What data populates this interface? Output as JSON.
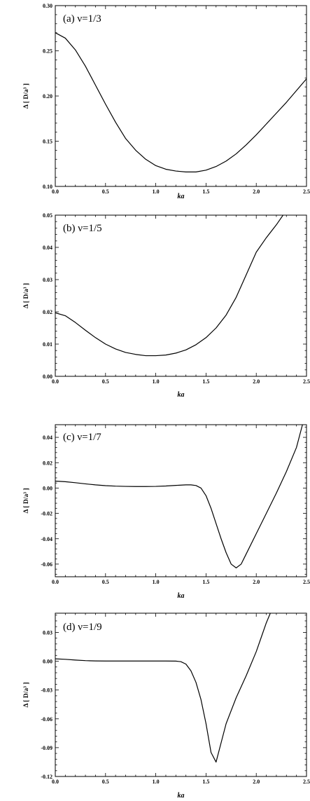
{
  "chart_data": [
    {
      "type": "line",
      "title": "(a) ν=1/3",
      "xlabel": "ka",
      "ylabel": "Δ [ D/a³ ]",
      "xlim": [
        0,
        2.5
      ],
      "ylim": [
        0.1,
        0.3
      ],
      "x_ticks": [
        "0.0",
        "0.5",
        "1.0",
        "1.5",
        "2.0",
        "2.5"
      ],
      "y_ticks": [
        "0.10",
        "0.15",
        "0.20",
        "0.25",
        "0.30"
      ],
      "y_tick_values": [
        0.1,
        0.15,
        0.2,
        0.25,
        0.3
      ],
      "series": [
        {
          "x": [
            0.0,
            0.1,
            0.2,
            0.3,
            0.4,
            0.5,
            0.6,
            0.7,
            0.8,
            0.9,
            1.0,
            1.1,
            1.2,
            1.3,
            1.35,
            1.4,
            1.5,
            1.6,
            1.7,
            1.8,
            1.9,
            2.0,
            2.1,
            2.2,
            2.3,
            2.4,
            2.5
          ],
          "values": [
            0.27,
            0.264,
            0.251,
            0.233,
            0.212,
            0.191,
            0.171,
            0.153,
            0.14,
            0.13,
            0.123,
            0.119,
            0.117,
            0.116,
            0.116,
            0.116,
            0.118,
            0.122,
            0.128,
            0.136,
            0.146,
            0.157,
            0.169,
            0.181,
            0.193,
            0.206,
            0.219
          ]
        }
      ]
    },
    {
      "type": "line",
      "title": "(b) ν=1/5",
      "xlabel": "ka",
      "ylabel": "Δ [ D/a³ ]",
      "xlim": [
        0,
        2.5
      ],
      "ylim": [
        0.0,
        0.05
      ],
      "x_ticks": [
        "0.0",
        "0.5",
        "1.0",
        "1.5",
        "2.0",
        "2.5"
      ],
      "y_ticks": [
        "0.00",
        "0.01",
        "0.02",
        "0.03",
        "0.04",
        "0.05"
      ],
      "y_tick_values": [
        0.0,
        0.01,
        0.02,
        0.03,
        0.04,
        0.05
      ],
      "series": [
        {
          "x": [
            0.0,
            0.1,
            0.2,
            0.3,
            0.4,
            0.5,
            0.6,
            0.7,
            0.8,
            0.9,
            1.0,
            1.1,
            1.2,
            1.3,
            1.4,
            1.5,
            1.6,
            1.7,
            1.8,
            1.9,
            2.0,
            2.1,
            2.2,
            2.3
          ],
          "values": [
            0.0197,
            0.0188,
            0.0167,
            0.0143,
            0.012,
            0.01,
            0.0085,
            0.0074,
            0.0068,
            0.0064,
            0.0064,
            0.0066,
            0.0072,
            0.0082,
            0.0098,
            0.012,
            0.015,
            0.019,
            0.0245,
            0.0315,
            0.0385,
            0.043,
            0.047,
            0.0515
          ]
        }
      ]
    },
    {
      "type": "line",
      "title": "(c) ν=1/7",
      "xlabel": "ka",
      "ylabel": "Δ [ D/a³ ]",
      "xlim": [
        0,
        2.5
      ],
      "ylim": [
        -0.07,
        0.05
      ],
      "x_ticks": [
        "0.0",
        "0.5",
        "1.0",
        "1.5",
        "2.0",
        "2.5"
      ],
      "y_ticks": [
        "-0.06",
        "-0.04",
        "-0.02",
        "0.00",
        "0.02",
        "0.04"
      ],
      "y_tick_values": [
        -0.06,
        -0.04,
        -0.02,
        0.0,
        0.02,
        0.04
      ],
      "series": [
        {
          "x": [
            0.0,
            0.1,
            0.2,
            0.3,
            0.4,
            0.5,
            0.6,
            0.7,
            0.8,
            0.9,
            1.0,
            1.1,
            1.2,
            1.3,
            1.35,
            1.4,
            1.45,
            1.5,
            1.55,
            1.6,
            1.65,
            1.7,
            1.75,
            1.8,
            1.85,
            1.9,
            2.0,
            2.1,
            2.2,
            2.3,
            2.4,
            2.46
          ],
          "values": [
            0.0055,
            0.005,
            0.0042,
            0.0033,
            0.0025,
            0.0019,
            0.0015,
            0.0013,
            0.0012,
            0.0012,
            0.0013,
            0.0016,
            0.0021,
            0.0025,
            0.0025,
            0.002,
            0.0,
            -0.006,
            -0.016,
            -0.028,
            -0.04,
            -0.051,
            -0.06,
            -0.063,
            -0.06,
            -0.052,
            -0.036,
            -0.02,
            -0.004,
            0.013,
            0.032,
            0.05
          ]
        }
      ]
    },
    {
      "type": "line",
      "title": "(d) ν=1/9",
      "xlabel": "ka",
      "ylabel": "Δ [ D/a³ ]",
      "xlim": [
        0,
        2.5
      ],
      "ylim": [
        -0.12,
        0.05
      ],
      "x_ticks": [
        "0.0",
        "0.5",
        "1.0",
        "1.5",
        "2.0",
        "2.5"
      ],
      "y_ticks": [
        "-0.12",
        "-0.09",
        "-0.06",
        "-0.03",
        "0.00",
        "0.03"
      ],
      "y_tick_values": [
        -0.12,
        -0.09,
        -0.06,
        -0.03,
        0.0,
        0.03
      ],
      "series": [
        {
          "x": [
            0.0,
            0.1,
            0.2,
            0.3,
            0.4,
            0.5,
            0.6,
            0.7,
            0.8,
            0.9,
            1.0,
            1.1,
            1.2,
            1.25,
            1.3,
            1.35,
            1.4,
            1.45,
            1.5,
            1.55,
            1.6,
            1.65,
            1.7,
            1.8,
            1.9,
            2.0,
            2.05,
            2.1,
            2.14
          ],
          "values": [
            0.0025,
            0.002,
            0.0012,
            0.0006,
            0.0003,
            0.0002,
            0.0002,
            0.0002,
            0.0002,
            0.0002,
            0.0002,
            0.0002,
            0.0001,
            -0.0005,
            -0.003,
            -0.01,
            -0.022,
            -0.04,
            -0.065,
            -0.095,
            -0.105,
            -0.085,
            -0.065,
            -0.038,
            -0.015,
            0.01,
            0.025,
            0.04,
            0.05
          ]
        }
      ]
    }
  ]
}
